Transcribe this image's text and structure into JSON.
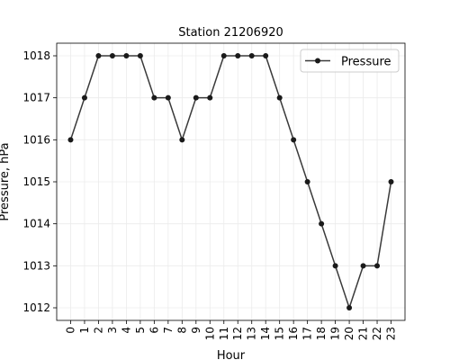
{
  "chart_data": {
    "type": "line",
    "title": "Station 21206920",
    "xlabel": "Hour",
    "ylabel": "Pressure, hPa",
    "x": [
      0,
      1,
      2,
      3,
      4,
      5,
      6,
      7,
      8,
      9,
      10,
      11,
      12,
      13,
      14,
      15,
      16,
      17,
      18,
      19,
      20,
      21,
      22,
      23
    ],
    "x_tick_labels": [
      "0",
      "1",
      "2",
      "3",
      "4",
      "5",
      "6",
      "7",
      "8",
      "9",
      "10",
      "11",
      "12",
      "13",
      "14",
      "15",
      "16",
      "17",
      "18",
      "19",
      "20",
      "21",
      "22",
      "23"
    ],
    "y_ticks": [
      1012,
      1013,
      1014,
      1015,
      1016,
      1017,
      1018
    ],
    "series": [
      {
        "name": "Pressure",
        "color": "#3a3a3a",
        "marker": "circle",
        "values": [
          1016,
          1017,
          1018,
          1018,
          1018,
          1018,
          1017,
          1017,
          1016,
          1017,
          1017,
          1018,
          1018,
          1018,
          1018,
          1017,
          1016,
          1015,
          1014,
          1013,
          1012,
          1013,
          1013,
          1015
        ]
      }
    ],
    "xlim": [
      -1,
      24
    ],
    "ylim": [
      1011.7,
      1018.3
    ],
    "grid": true,
    "legend": "upper-right"
  }
}
